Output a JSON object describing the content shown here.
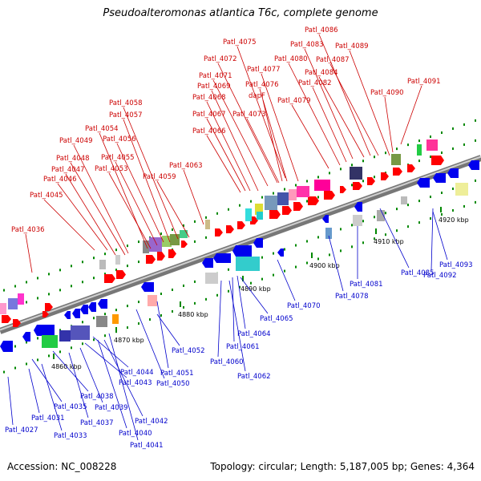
{
  "title": "Pseudoalteromonas atlantica T6c, complete genome",
  "footer": {
    "accession": "Accession: NC_008228",
    "topology": "Topology: circular; Length: 5,187,005 bp; Genes: 4,364"
  },
  "colors": {
    "forward_label": "#cc0000",
    "reverse_label": "#0000cc",
    "forward_feature": "#ff0000",
    "reverse_feature": "#0000ee",
    "backbone": "#888888",
    "tick": "#008800"
  },
  "kbp_ticks": [
    "4860 kbp",
    "4870 kbp",
    "4880 kbp",
    "4890 kbp",
    "4900 kbp",
    "4910 kbp",
    "4920 kbp"
  ],
  "forward_labels": [
    "Patl_4036",
    "Patl_4045",
    "Patl_4046",
    "Patl_4047",
    "Patl_4048",
    "Patl_4049",
    "Patl_4054",
    "Patl_4053",
    "Patl_4055",
    "Patl_4056",
    "Patl_4057",
    "Patl_4058",
    "Patl_4059",
    "Patl_4063",
    "Patl_4066",
    "Patl_4067",
    "Patl_4068",
    "Patl_4069",
    "Patl_4071",
    "Patl_4072",
    "Patl_4075",
    "Patl_4073",
    "dapF",
    "Patl_4076",
    "Patl_4077",
    "Patl_4079",
    "Patl_4080",
    "Patl_4082",
    "Patl_4083",
    "Patl_4084",
    "Patl_4086",
    "Patl_4087",
    "Patl_4089",
    "Patl_4090",
    "Patl_4091"
  ],
  "reverse_labels": [
    "Patl_4027",
    "Patl_4031",
    "Patl_4033",
    "Patl_4035",
    "Patl_4037",
    "Patl_4038",
    "Patl_4039",
    "Patl_4040",
    "Patl_4041",
    "Patl_4042",
    "Patl_4043",
    "Patl_4044",
    "Patl_4050",
    "Patl_4051",
    "Patl_4052",
    "Patl_4060",
    "Patl_4061",
    "Patl_4062",
    "Patl_4064",
    "Patl_4065",
    "Patl_4070",
    "Patl_4078",
    "Patl_4081",
    "Patl_4085",
    "Patl_4092",
    "Patl_4093"
  ]
}
